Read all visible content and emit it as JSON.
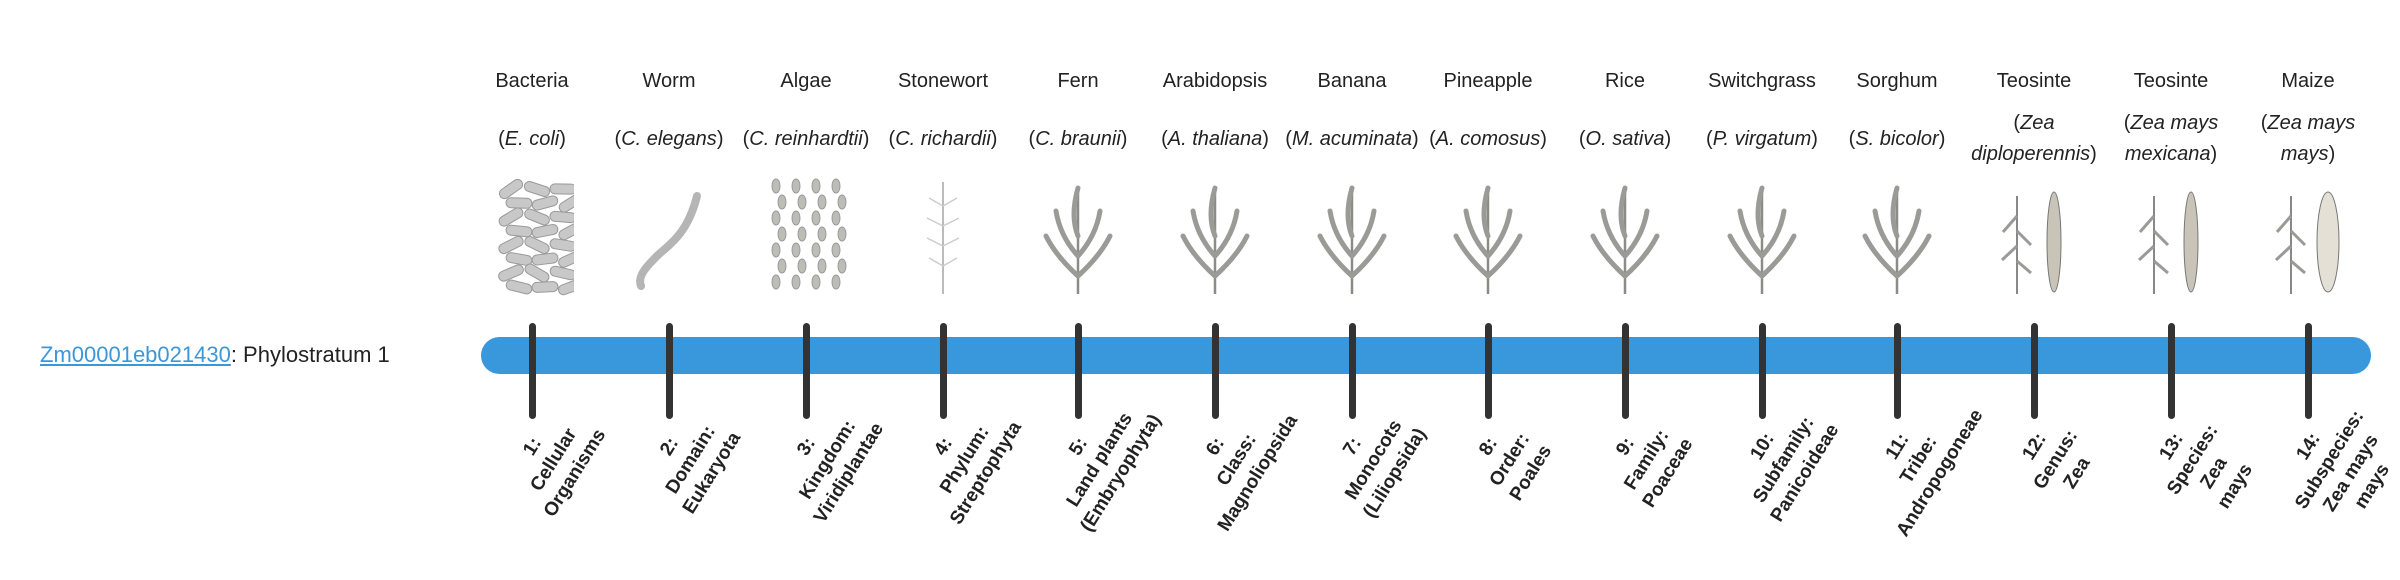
{
  "gene": {
    "id": "Zm00001eb021430",
    "suffix": ": Phylostratum 1"
  },
  "bar_color": "#3898db",
  "link_color": "#3a97d9",
  "columns": [
    {
      "name": "Bacteria",
      "species": "E. coli",
      "icon": "bacteria-icon",
      "stage": [
        "1:",
        "Cellular",
        "Organisms"
      ]
    },
    {
      "name": "Worm",
      "species": "C. elegans",
      "icon": "worm-icon",
      "stage": [
        "2:",
        "Domain:",
        "Eukaryota"
      ]
    },
    {
      "name": "Algae",
      "species": "C. reinhardtii",
      "icon": "algae-icon",
      "stage": [
        "3:",
        "Kingdom:",
        "Viridiplantae"
      ]
    },
    {
      "name": "Stonewort",
      "species": "C. richardii",
      "icon": "stonewort-icon",
      "stage": [
        "4:",
        "Phylum:",
        "Streptophyta"
      ]
    },
    {
      "name": "Fern",
      "species": "C. braunii",
      "icon": "fern-icon",
      "stage": [
        "5:",
        "Land plants",
        "(Embryophyta)"
      ]
    },
    {
      "name": "Arabidopsis",
      "species": "A. thaliana",
      "icon": "arabidopsis-icon",
      "stage": [
        "6:",
        "Class:",
        "Magnoliopsida"
      ]
    },
    {
      "name": "Banana",
      "species": "M. acuminata",
      "icon": "banana-icon",
      "stage": [
        "7:",
        "Monocots",
        "(Liliopsida)"
      ]
    },
    {
      "name": "Pineapple",
      "species": "A. comosus",
      "icon": "pineapple-icon",
      "stage": [
        "8:",
        "Order:",
        "Poales"
      ]
    },
    {
      "name": "Rice",
      "species": "O. sativa",
      "icon": "rice-icon",
      "stage": [
        "9:",
        "Family:",
        "Poaceae"
      ]
    },
    {
      "name": "Switchgrass",
      "species": "P. virgatum",
      "icon": "switchgrass-icon",
      "stage": [
        "10:",
        "Subfamily:",
        "Panicoideae"
      ]
    },
    {
      "name": "Sorghum",
      "species": "S. bicolor",
      "icon": "sorghum-icon",
      "stage": [
        "11:",
        "Tribe:",
        "Andropogoneae"
      ]
    },
    {
      "name": "Teosinte",
      "species": "Zea diploperennis",
      "icon": "teosinte-icon",
      "stage": [
        "12:",
        "Genus:",
        "Zea"
      ]
    },
    {
      "name": "Teosinte",
      "species": "Zea mays mexicana",
      "icon": "teosinte-icon",
      "stage": [
        "13:",
        "Species:",
        "Zea",
        "mays"
      ]
    },
    {
      "name": "Maize",
      "species": "Zea mays mays",
      "icon": "maize-icon",
      "stage": [
        "14:",
        "Subspecies:",
        "Zea mays",
        "mays"
      ]
    }
  ]
}
